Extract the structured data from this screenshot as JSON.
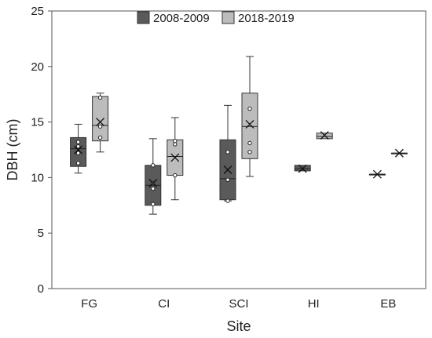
{
  "chart_data": {
    "type": "box",
    "xlabel": "Site",
    "ylabel": "DBH (cm)",
    "ylim": [
      0,
      25
    ],
    "yticks": [
      0,
      5,
      10,
      15,
      20,
      25
    ],
    "categories": [
      "FG",
      "CI",
      "SCI",
      "HI",
      "EB"
    ],
    "legend_position": "top-center",
    "grid": false,
    "series": [
      {
        "name": "2008-2009",
        "color": "#5a5a5a",
        "boxes": [
          {
            "category": "FG",
            "min": 10.4,
            "q1": 11.0,
            "median": 12.6,
            "q3": 13.6,
            "max": 14.8,
            "mean": 12.5,
            "points": [
              11.3,
              12.2,
              12.8,
              13.2
            ]
          },
          {
            "category": "CI",
            "min": 6.7,
            "q1": 7.5,
            "median": 9.3,
            "q3": 11.1,
            "max": 13.5,
            "mean": 9.5,
            "points": [
              7.6,
              9.0,
              9.5,
              11.1
            ]
          },
          {
            "category": "SCI",
            "min": 7.9,
            "q1": 8.0,
            "median": 9.9,
            "q3": 13.4,
            "max": 16.5,
            "mean": 10.7,
            "points": [
              7.9,
              9.8,
              12.3
            ]
          },
          {
            "category": "HI",
            "min": 10.6,
            "q1": 10.6,
            "median": 10.8,
            "q3": 11.1,
            "max": 11.1,
            "mean": 10.8,
            "points": []
          },
          {
            "category": "EB",
            "min": 10.3,
            "q1": 10.3,
            "median": 10.3,
            "q3": 10.3,
            "max": 10.3,
            "mean": 10.3,
            "points": []
          }
        ]
      },
      {
        "name": "2018-2019",
        "color": "#bcbcbc",
        "boxes": [
          {
            "category": "FG",
            "min": 12.3,
            "q1": 13.3,
            "median": 14.7,
            "q3": 17.3,
            "max": 17.6,
            "mean": 15.0,
            "points": [
              13.6,
              14.6,
              17.2
            ]
          },
          {
            "category": "CI",
            "min": 8.0,
            "q1": 10.2,
            "median": 11.9,
            "q3": 13.4,
            "max": 15.4,
            "mean": 11.8,
            "points": [
              10.2,
              13.0,
              13.3
            ]
          },
          {
            "category": "SCI",
            "min": 10.1,
            "q1": 11.7,
            "median": 14.6,
            "q3": 17.6,
            "max": 20.9,
            "mean": 14.8,
            "points": [
              12.3,
              13.1,
              16.2
            ]
          },
          {
            "category": "HI",
            "min": 13.5,
            "q1": 13.5,
            "median": 13.7,
            "q3": 14.0,
            "max": 14.0,
            "mean": 13.8,
            "points": []
          },
          {
            "category": "EB",
            "min": 12.2,
            "q1": 12.2,
            "median": 12.2,
            "q3": 12.2,
            "max": 12.2,
            "mean": 12.2,
            "points": []
          }
        ]
      }
    ]
  }
}
